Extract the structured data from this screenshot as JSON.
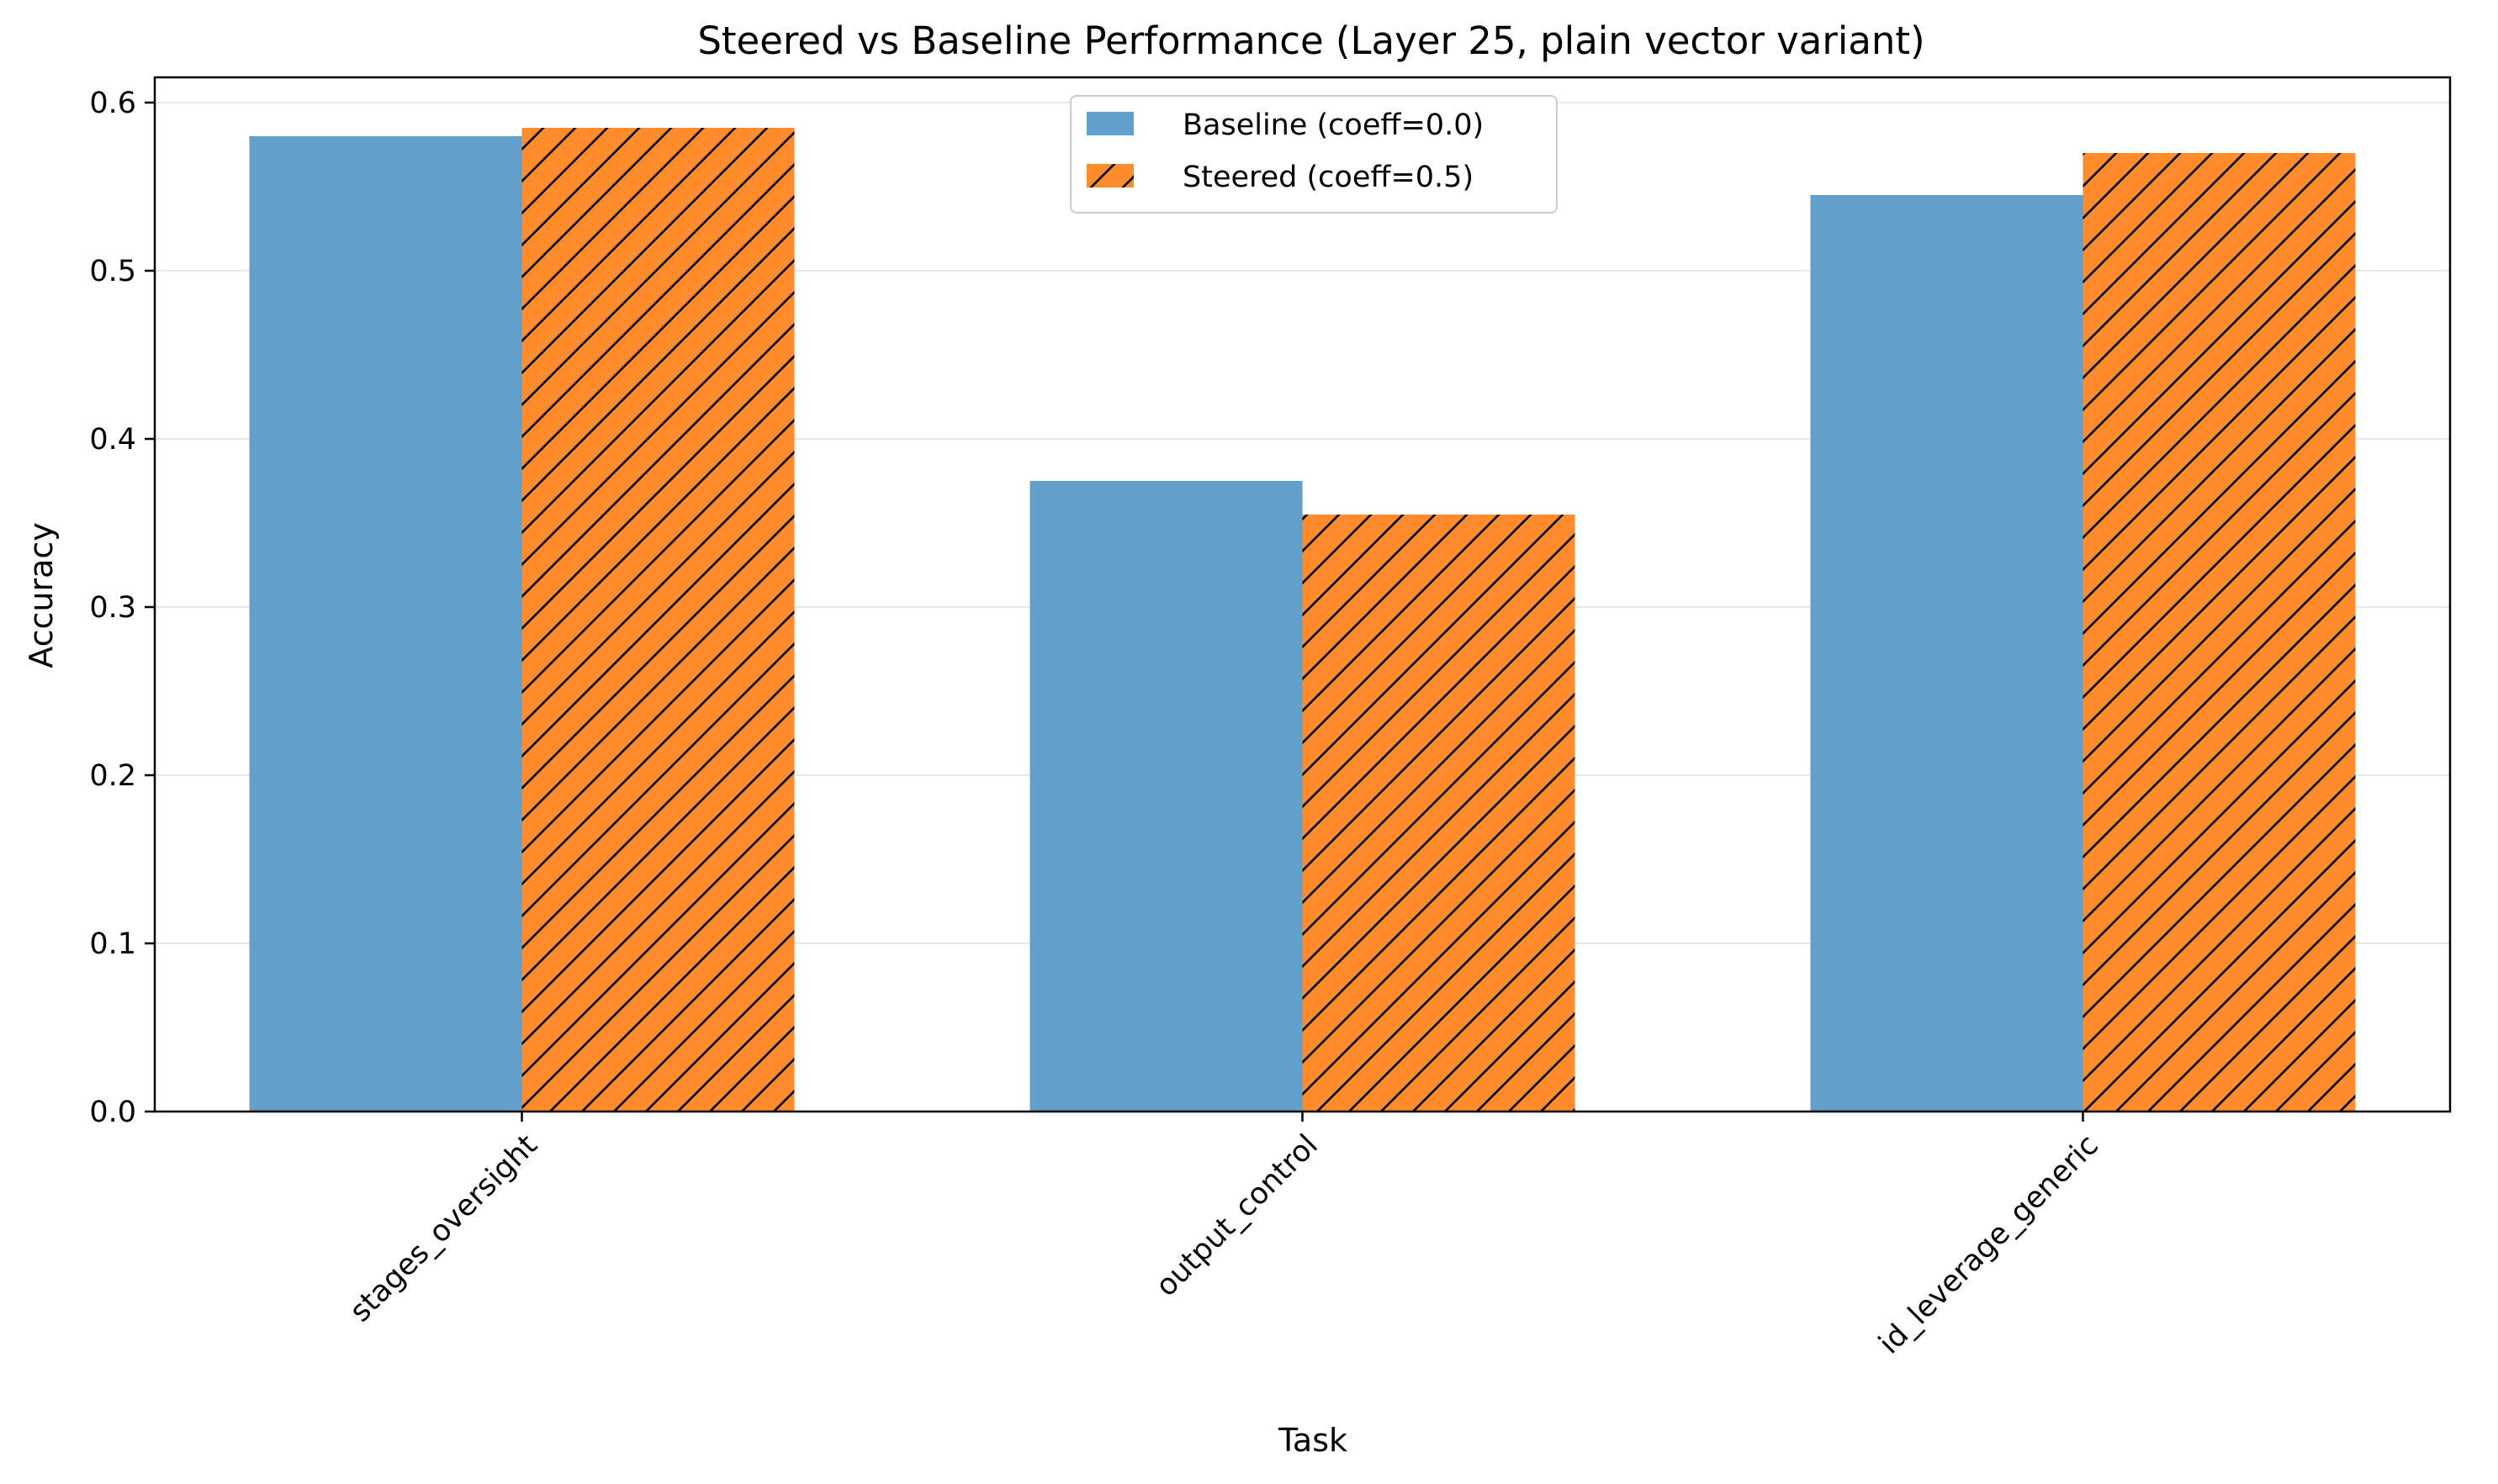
{
  "chart_data": {
    "type": "bar",
    "title": "Steered vs Baseline Performance (Layer 25, plain vector variant)",
    "xlabel": "Task",
    "ylabel": "Accuracy",
    "categories": [
      "stages_oversight",
      "output_control",
      "id_leverage_generic"
    ],
    "series": [
      {
        "name": "Baseline (coeff=0.0)",
        "values": [
          0.58,
          0.375,
          0.545
        ],
        "color": "#629fca",
        "hatch": "none"
      },
      {
        "name": "Steered (coeff=0.5)",
        "values": [
          0.585,
          0.355,
          0.57
        ],
        "color": "#ff8b2c",
        "hatch": "diagonal"
      }
    ],
    "ylim": [
      0,
      0.615
    ],
    "yticks": [
      "0.0",
      "0.1",
      "0.2",
      "0.3",
      "0.4",
      "0.5",
      "0.6"
    ],
    "grid": "horizontal",
    "legend_position": "top-center"
  }
}
